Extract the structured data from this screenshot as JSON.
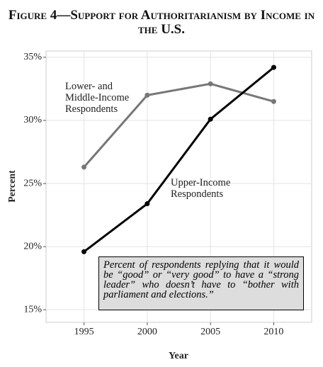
{
  "chart_data": {
    "type": "line",
    "title": "Figure 4—Support for Authoritarianism by Income in the U.S.",
    "x_label": "Year",
    "y_label": "Percent",
    "x": [
      1995,
      2000,
      2005,
      2010
    ],
    "series": [
      {
        "name": "Lower- and Middle-Income Respondents",
        "color": "#777777",
        "values": [
          26.3,
          32.0,
          32.9,
          31.5
        ]
      },
      {
        "name": "Upper-Income Respondents",
        "color": "#000000",
        "values": [
          19.6,
          23.4,
          30.1,
          34.2
        ]
      }
    ],
    "xlim": [
      1992,
      2013
    ],
    "ylim": [
      14,
      35.5
    ],
    "xticks": [
      1995,
      2000,
      2005,
      2010
    ],
    "yticks": [
      {
        "value": 15,
        "label": "15%"
      },
      {
        "value": 20,
        "label": "20%"
      },
      {
        "value": 25,
        "label": "25%"
      },
      {
        "value": 30,
        "label": "30%"
      },
      {
        "value": 35,
        "label": "35%"
      }
    ],
    "grid": true,
    "annotation": "Percent of respondents replying that it would be “good” or “very good” to have a “strong leader” who doesn’t have to “bother with parliament and elections.”"
  }
}
